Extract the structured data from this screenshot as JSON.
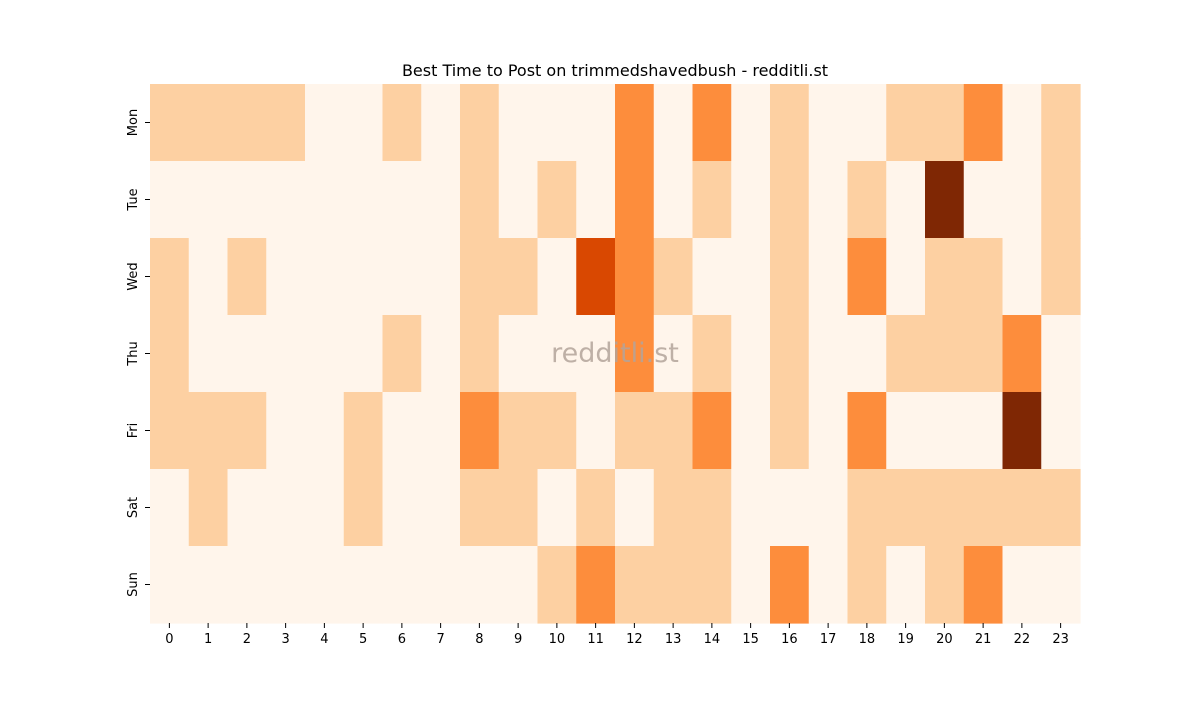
{
  "chart_data": {
    "type": "heatmap",
    "title": "Best Time to Post on trimmedshavedbush - redditli.st",
    "xlabel": "",
    "ylabel": "",
    "x_categories": [
      "0",
      "1",
      "2",
      "3",
      "4",
      "5",
      "6",
      "7",
      "8",
      "9",
      "10",
      "11",
      "12",
      "13",
      "14",
      "15",
      "16",
      "17",
      "18",
      "19",
      "20",
      "21",
      "22",
      "23"
    ],
    "y_categories": [
      "Mon",
      "Tue",
      "Wed",
      "Thu",
      "Fri",
      "Sat",
      "Sun"
    ],
    "values": [
      [
        1,
        1,
        1,
        1,
        0,
        0,
        1,
        0,
        1,
        0,
        0,
        0,
        2,
        0,
        2,
        0,
        1,
        0,
        0,
        1,
        1,
        2,
        0,
        1
      ],
      [
        0,
        0,
        0,
        0,
        0,
        0,
        0,
        0,
        1,
        0,
        1,
        0,
        2,
        0,
        1,
        0,
        1,
        0,
        1,
        0,
        4,
        0,
        0,
        1
      ],
      [
        1,
        0,
        1,
        0,
        0,
        0,
        0,
        0,
        1,
        1,
        0,
        3,
        2,
        1,
        0,
        0,
        1,
        0,
        2,
        0,
        1,
        1,
        0,
        1
      ],
      [
        1,
        0,
        0,
        0,
        0,
        0,
        1,
        0,
        1,
        0,
        0,
        0,
        2,
        0,
        1,
        0,
        1,
        0,
        0,
        1,
        1,
        1,
        2,
        0
      ],
      [
        1,
        1,
        1,
        0,
        0,
        1,
        0,
        0,
        2,
        1,
        1,
        0,
        1,
        1,
        2,
        0,
        1,
        0,
        2,
        0,
        0,
        0,
        4,
        0
      ],
      [
        0,
        1,
        0,
        0,
        0,
        1,
        0,
        0,
        1,
        1,
        0,
        1,
        0,
        1,
        1,
        0,
        0,
        0,
        1,
        1,
        1,
        1,
        1,
        1
      ],
      [
        0,
        0,
        0,
        0,
        0,
        0,
        0,
        0,
        0,
        0,
        1,
        2,
        1,
        1,
        1,
        0,
        2,
        0,
        1,
        0,
        1,
        2,
        0,
        0
      ]
    ],
    "value_range": [
      0,
      4
    ],
    "colormap": [
      "#fff5eb",
      "#fdd0a2",
      "#fd8d3c",
      "#d94801",
      "#7f2704"
    ],
    "colorbar": false,
    "watermark": "redditli.st"
  }
}
